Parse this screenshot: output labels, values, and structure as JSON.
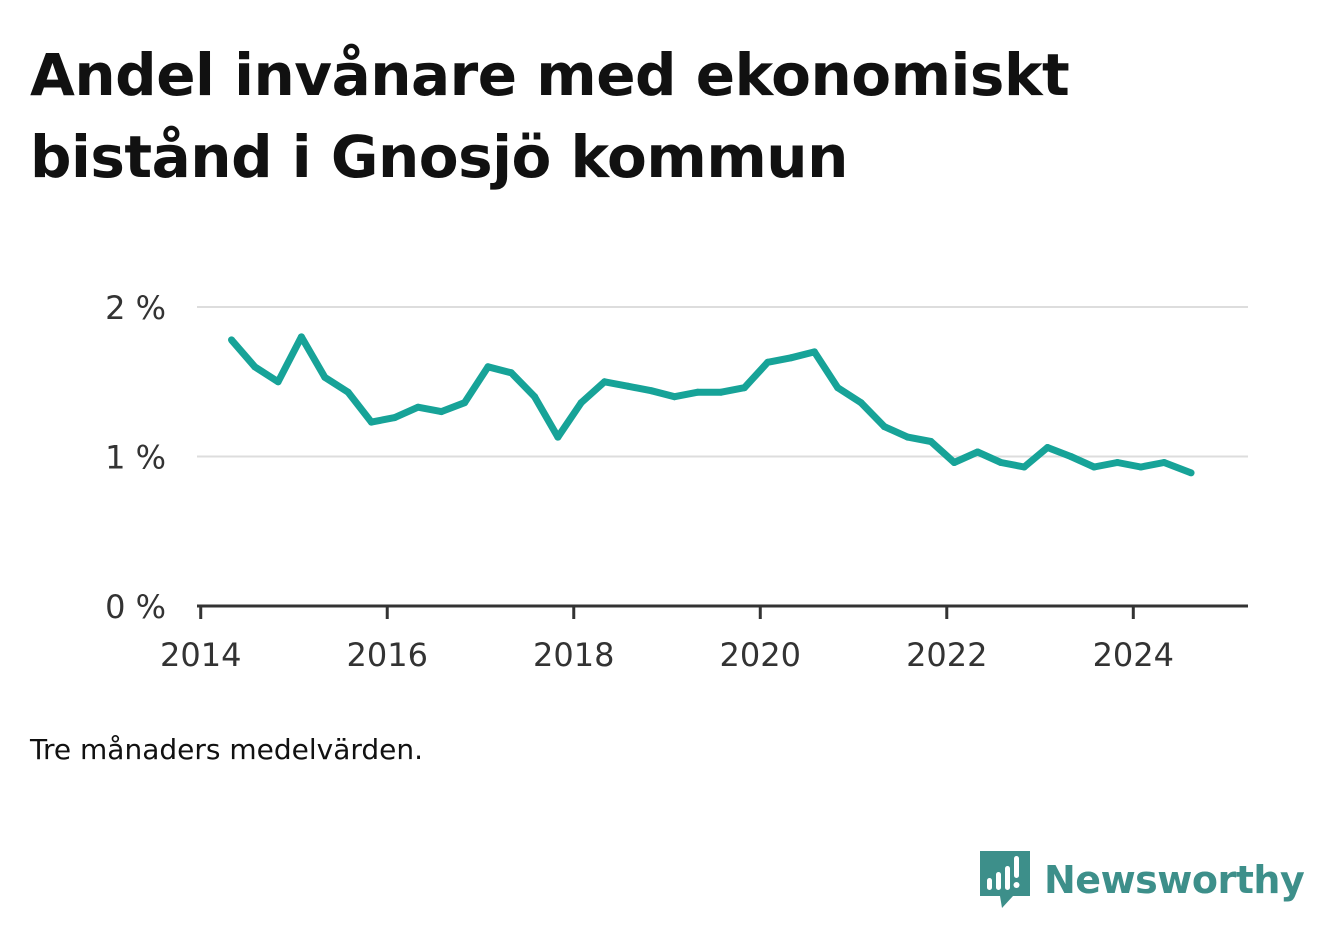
{
  "title": "Andel invånare med ekonomiskt bistånd i Gnosjö kommun",
  "note": "Tre månaders medelvärden.",
  "brand": {
    "name": "Newsworthy",
    "logo_icon": "bar-chart-speech-bubble-icon"
  },
  "colors": {
    "line": "#17a398",
    "brand": "#3d8f8a",
    "grid": "#dddddd",
    "axis": "#333333",
    "text": "#111111"
  },
  "chart_data": {
    "type": "line",
    "title": "Andel invånare med ekonomiskt bistånd i Gnosjö kommun",
    "xlabel": "",
    "ylabel": "",
    "xlim": [
      2013.96,
      2025.23
    ],
    "ylim": [
      0,
      2
    ],
    "x_ticks": [
      2014,
      2016,
      2018,
      2020,
      2022,
      2024
    ],
    "y_ticks": [
      {
        "value": 0,
        "label": "0 %"
      },
      {
        "value": 1,
        "label": "1 %"
      },
      {
        "value": 2,
        "label": "2 %"
      }
    ],
    "grid": true,
    "series": [
      {
        "name": "Andel invånare med ekonomiskt bistånd",
        "x": [
          2014.33,
          2014.58,
          2014.83,
          2015.08,
          2015.33,
          2015.58,
          2015.83,
          2016.08,
          2016.33,
          2016.58,
          2016.83,
          2017.08,
          2017.33,
          2017.58,
          2017.83,
          2018.08,
          2018.33,
          2018.58,
          2018.83,
          2019.08,
          2019.33,
          2019.58,
          2019.83,
          2020.08,
          2020.33,
          2020.58,
          2020.83,
          2021.08,
          2021.33,
          2021.58,
          2021.83,
          2022.08,
          2022.33,
          2022.58,
          2022.83,
          2023.08,
          2023.33,
          2023.58,
          2023.83,
          2024.08,
          2024.33,
          2024.62
        ],
        "values": [
          1.78,
          1.6,
          1.5,
          1.8,
          1.53,
          1.43,
          1.23,
          1.26,
          1.33,
          1.3,
          1.36,
          1.6,
          1.56,
          1.4,
          1.13,
          1.36,
          1.5,
          1.47,
          1.44,
          1.4,
          1.43,
          1.43,
          1.46,
          1.63,
          1.66,
          1.7,
          1.46,
          1.36,
          1.2,
          1.13,
          1.1,
          0.96,
          1.03,
          0.96,
          0.93,
          1.06,
          1.0,
          0.93,
          0.96,
          0.93,
          0.96,
          0.89
        ]
      }
    ]
  }
}
